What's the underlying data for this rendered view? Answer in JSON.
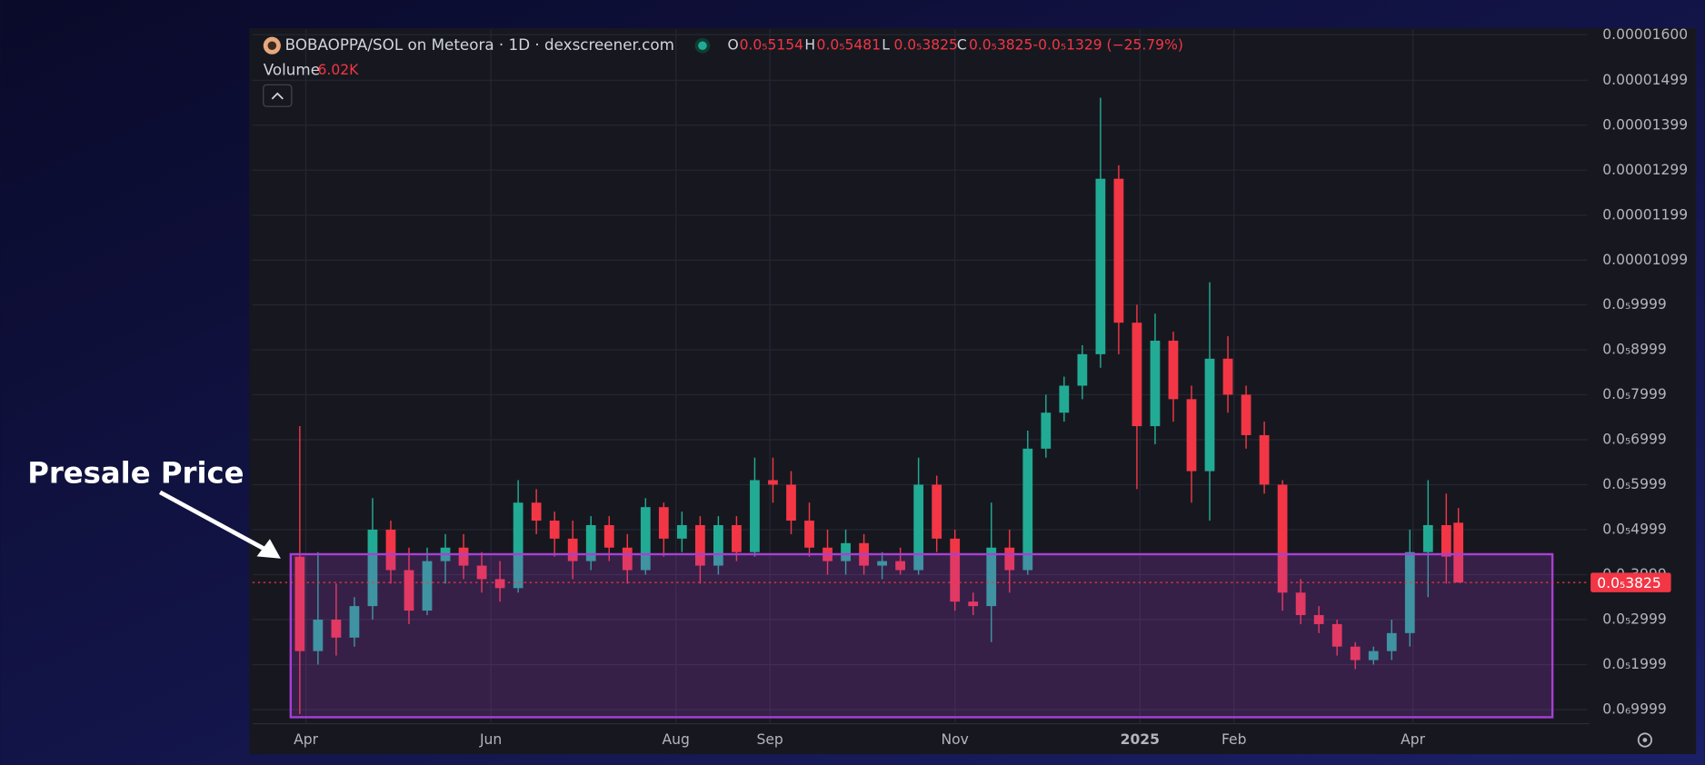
{
  "chart_data": {
    "type": "candlestick",
    "title": "BOBAOPPA/SOL on Meteora · 1D · dexscreener.com",
    "header": [
      {
        "label": "O",
        "value": "0.0₅5154"
      },
      {
        "label": "H",
        "value": "0.0₅5481"
      },
      {
        "label": "L",
        "value": "0.0₅3825"
      },
      {
        "label": "C",
        "value": "0.0₅3825"
      }
    ],
    "change": "-0.0₅1329 (−25.79%)",
    "volume_label": "Volume",
    "volume": "6.02K",
    "annotation": "Presale Price",
    "up_color": "#22ab94",
    "down_color": "#f23645",
    "grid": true,
    "x": [
      -2,
      4,
      10,
      16,
      22,
      28,
      34,
      40,
      46,
      52,
      58,
      64,
      70,
      76,
      82,
      88,
      94,
      100,
      106,
      112,
      118,
      124,
      130,
      136,
      142,
      148,
      154,
      160,
      166,
      172,
      178,
      184,
      190,
      196,
      202,
      208,
      214,
      220,
      226,
      232,
      238,
      244,
      250,
      256,
      262,
      268,
      274,
      280,
      286,
      292,
      298,
      304,
      310,
      316,
      322,
      328,
      334,
      340,
      346,
      352,
      358,
      364,
      370,
      376,
      380
    ],
    "open": [
      4.4e-06,
      2.3e-06,
      3e-06,
      2.6e-06,
      3.3e-06,
      5e-06,
      4.1e-06,
      3.2e-06,
      4.3e-06,
      4.6e-06,
      4.2e-06,
      3.9e-06,
      3.7e-06,
      5.6e-06,
      5.2e-06,
      4.8e-06,
      4.3e-06,
      5.1e-06,
      4.6e-06,
      4.1e-06,
      5.5e-06,
      4.8e-06,
      5.1e-06,
      4.2e-06,
      5.1e-06,
      4.5e-06,
      6.1e-06,
      6e-06,
      5.2e-06,
      4.6e-06,
      4.3e-06,
      4.7e-06,
      4.2e-06,
      4.3e-06,
      4.1e-06,
      6e-06,
      4.8e-06,
      3.4e-06,
      3.3e-06,
      4.6e-06,
      4.1e-06,
      6.8e-06,
      7.6e-06,
      8.2e-06,
      8.9e-06,
      1.28e-05,
      9.6e-06,
      7.3e-06,
      9.2e-06,
      7.9e-06,
      6.3e-06,
      8.8e-06,
      8e-06,
      7.1e-06,
      6e-06,
      3.6e-06,
      3.1e-06,
      2.9e-06,
      2.4e-06,
      2.1e-06,
      2.3e-06,
      2.7e-06,
      4.5e-06,
      5.1e-06,
      5.154e-06
    ],
    "high": [
      7.3e-06,
      4.5e-06,
      3.8e-06,
      3.5e-06,
      5.7e-06,
      5.2e-06,
      4.6e-06,
      4.6e-06,
      4.9e-06,
      4.9e-06,
      4.5e-06,
      4.3e-06,
      6.1e-06,
      5.9e-06,
      5.4e-06,
      5.2e-06,
      5.3e-06,
      5.3e-06,
      4.9e-06,
      5.7e-06,
      5.6e-06,
      5.4e-06,
      5.3e-06,
      5.3e-06,
      5.3e-06,
      6.6e-06,
      6.6e-06,
      6.3e-06,
      5.6e-06,
      5e-06,
      5e-06,
      4.9e-06,
      4.5e-06,
      4.6e-06,
      6.6e-06,
      6.2e-06,
      5e-06,
      3.6e-06,
      5.6e-06,
      5e-06,
      7.2e-06,
      8e-06,
      8.4e-06,
      9.1e-06,
      1.46e-05,
      1.31e-05,
      1e-05,
      9.8e-06,
      9.4e-06,
      8.2e-06,
      1.05e-05,
      9.3e-06,
      8.2e-06,
      7.4e-06,
      6.1e-06,
      3.9e-06,
      3.3e-06,
      3e-06,
      2.5e-06,
      2.4e-06,
      3e-06,
      5e-06,
      6.1e-06,
      5.8e-06,
      5.481e-06
    ],
    "low": [
      9e-07,
      2e-06,
      2.2e-06,
      2.4e-06,
      3e-06,
      3.8e-06,
      2.9e-06,
      3.1e-06,
      3.8e-06,
      3.9e-06,
      3.6e-06,
      3.4e-06,
      3.6e-06,
      4.9e-06,
      4.4e-06,
      3.9e-06,
      4.1e-06,
      4.3e-06,
      3.8e-06,
      4e-06,
      4.4e-06,
      4.5e-06,
      3.8e-06,
      4e-06,
      4.3e-06,
      4.4e-06,
      5.6e-06,
      4.9e-06,
      4.4e-06,
      4e-06,
      4e-06,
      4e-06,
      3.9e-06,
      4e-06,
      4e-06,
      4.5e-06,
      3.2e-06,
      3.1e-06,
      2.5e-06,
      3.6e-06,
      4e-06,
      6.6e-06,
      7.4e-06,
      7.9e-06,
      8.6e-06,
      8.9e-06,
      5.9e-06,
      6.9e-06,
      7.4e-06,
      5.6e-06,
      5.2e-06,
      7.6e-06,
      6.8e-06,
      5.8e-06,
      3.2e-06,
      2.9e-06,
      2.7e-06,
      2.2e-06,
      1.9e-06,
      2e-06,
      2.1e-06,
      2.4e-06,
      3.5e-06,
      3.8e-06,
      3.825e-06
    ],
    "close": [
      2.3e-06,
      3e-06,
      2.6e-06,
      3.3e-06,
      5e-06,
      4.1e-06,
      3.2e-06,
      4.3e-06,
      4.6e-06,
      4.2e-06,
      3.9e-06,
      3.7e-06,
      5.6e-06,
      5.2e-06,
      4.8e-06,
      4.3e-06,
      5.1e-06,
      4.6e-06,
      4.1e-06,
      5.5e-06,
      4.8e-06,
      5.1e-06,
      4.2e-06,
      5.1e-06,
      4.5e-06,
      6.1e-06,
      6e-06,
      5.2e-06,
      4.6e-06,
      4.3e-06,
      4.7e-06,
      4.2e-06,
      4.3e-06,
      4.1e-06,
      6e-06,
      4.8e-06,
      3.4e-06,
      3.3e-06,
      4.6e-06,
      4.1e-06,
      6.8e-06,
      7.6e-06,
      8.2e-06,
      8.9e-06,
      1.28e-05,
      9.6e-06,
      7.3e-06,
      9.2e-06,
      7.9e-06,
      6.3e-06,
      8.8e-06,
      8e-06,
      7.1e-06,
      6e-06,
      3.6e-06,
      3.1e-06,
      2.9e-06,
      2.4e-06,
      2.1e-06,
      2.3e-06,
      2.7e-06,
      4.5e-06,
      5.1e-06,
      4.4e-06,
      3.825e-06
    ],
    "xlim": [
      -17.6,
      422.5
    ],
    "xticks": [
      {
        "value": 0,
        "label": "Apr"
      },
      {
        "value": 61,
        "label": "Jun"
      },
      {
        "value": 122,
        "label": "Aug"
      },
      {
        "value": 153,
        "label": "Sep"
      },
      {
        "value": 214,
        "label": "Nov"
      },
      {
        "value": 275,
        "label": "2025"
      },
      {
        "value": 306,
        "label": "Feb"
      },
      {
        "value": 365,
        "label": "Apr"
      }
    ],
    "ylim": [
      6.86e-07,
      1.6121e-05
    ],
    "yticks": [
      {
        "value": 1.6e-05,
        "label": "0.00001600"
      },
      {
        "value": 1.499e-05,
        "label": "0.00001499"
      },
      {
        "value": 1.399e-05,
        "label": "0.00001399"
      },
      {
        "value": 1.299e-05,
        "label": "0.00001299"
      },
      {
        "value": 1.199e-05,
        "label": "0.00001199"
      },
      {
        "value": 1.099e-05,
        "label": "0.00001099"
      },
      {
        "value": 9.999e-06,
        "label": "0.0₅9999"
      },
      {
        "value": 8.999e-06,
        "label": "0.0₅8999"
      },
      {
        "value": 7.999e-06,
        "label": "0.0₅7999"
      },
      {
        "value": 6.999e-06,
        "label": "0.0₅6999"
      },
      {
        "value": 5.999e-06,
        "label": "0.0₅5999"
      },
      {
        "value": 4.999e-06,
        "label": "0.0₅4999"
      },
      {
        "value": 3.999e-06,
        "label": "0.0₅3999"
      },
      {
        "value": 2.999e-06,
        "label": "0.0₅2999"
      },
      {
        "value": 1.999e-06,
        "label": "0.0₅1999"
      },
      {
        "value": 9.999e-07,
        "label": "0.0₆9999"
      }
    ],
    "last_price": {
      "value": 3.825e-06,
      "label": "0.0₅3825"
    },
    "zone": {
      "x0": -5,
      "x1": 411,
      "top": 4.454e-06,
      "bottom": 8.3e-07,
      "color": "#a83fd6"
    }
  }
}
